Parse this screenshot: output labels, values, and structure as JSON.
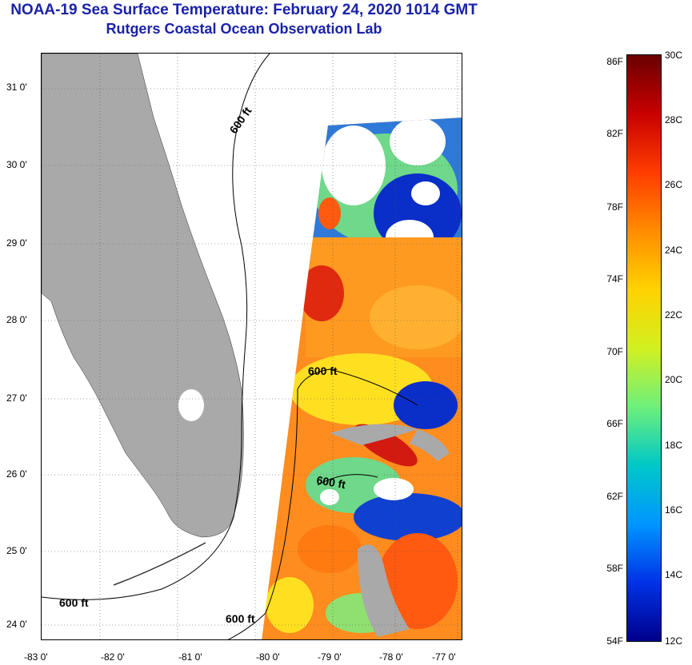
{
  "title": {
    "line1": "NOAA-19 Sea Surface Temperature:  February 24, 2020 1014 GMT",
    "line2": "Rutgers Coastal Ocean Observation Lab"
  },
  "map": {
    "lat_labels": [
      "31 0'",
      "30 0'",
      "29 0'",
      "28 0'",
      "27 0'",
      "26 0'",
      "25 0'",
      "24 0'"
    ],
    "lon_labels": [
      "-83 0'",
      "-82 0'",
      "-81 0'",
      "-80 0'",
      "-79 0'",
      "-78 0'",
      "-77 0'"
    ],
    "contour_labels": [
      "600 ft",
      "600 ft",
      "600 ft",
      "600 ft",
      "600 ft"
    ],
    "land_color": "#a9a9a9"
  },
  "colorbar": {
    "fahrenheit_labels": [
      "86F",
      "82F",
      "78F",
      "74F",
      "70F",
      "66F",
      "62F",
      "58F",
      "54F"
    ],
    "celsius_labels": [
      "30C",
      "28C",
      "26C",
      "24C",
      "22C",
      "20C",
      "18C",
      "16C",
      "14C",
      "12C"
    ],
    "colors": [
      "#6b0000",
      "#c80000",
      "#ff3c00",
      "#ff8c00",
      "#ffd200",
      "#d2f020",
      "#6ef07a",
      "#00c8c8",
      "#0096ff",
      "#0032e6",
      "#00008c"
    ]
  }
}
